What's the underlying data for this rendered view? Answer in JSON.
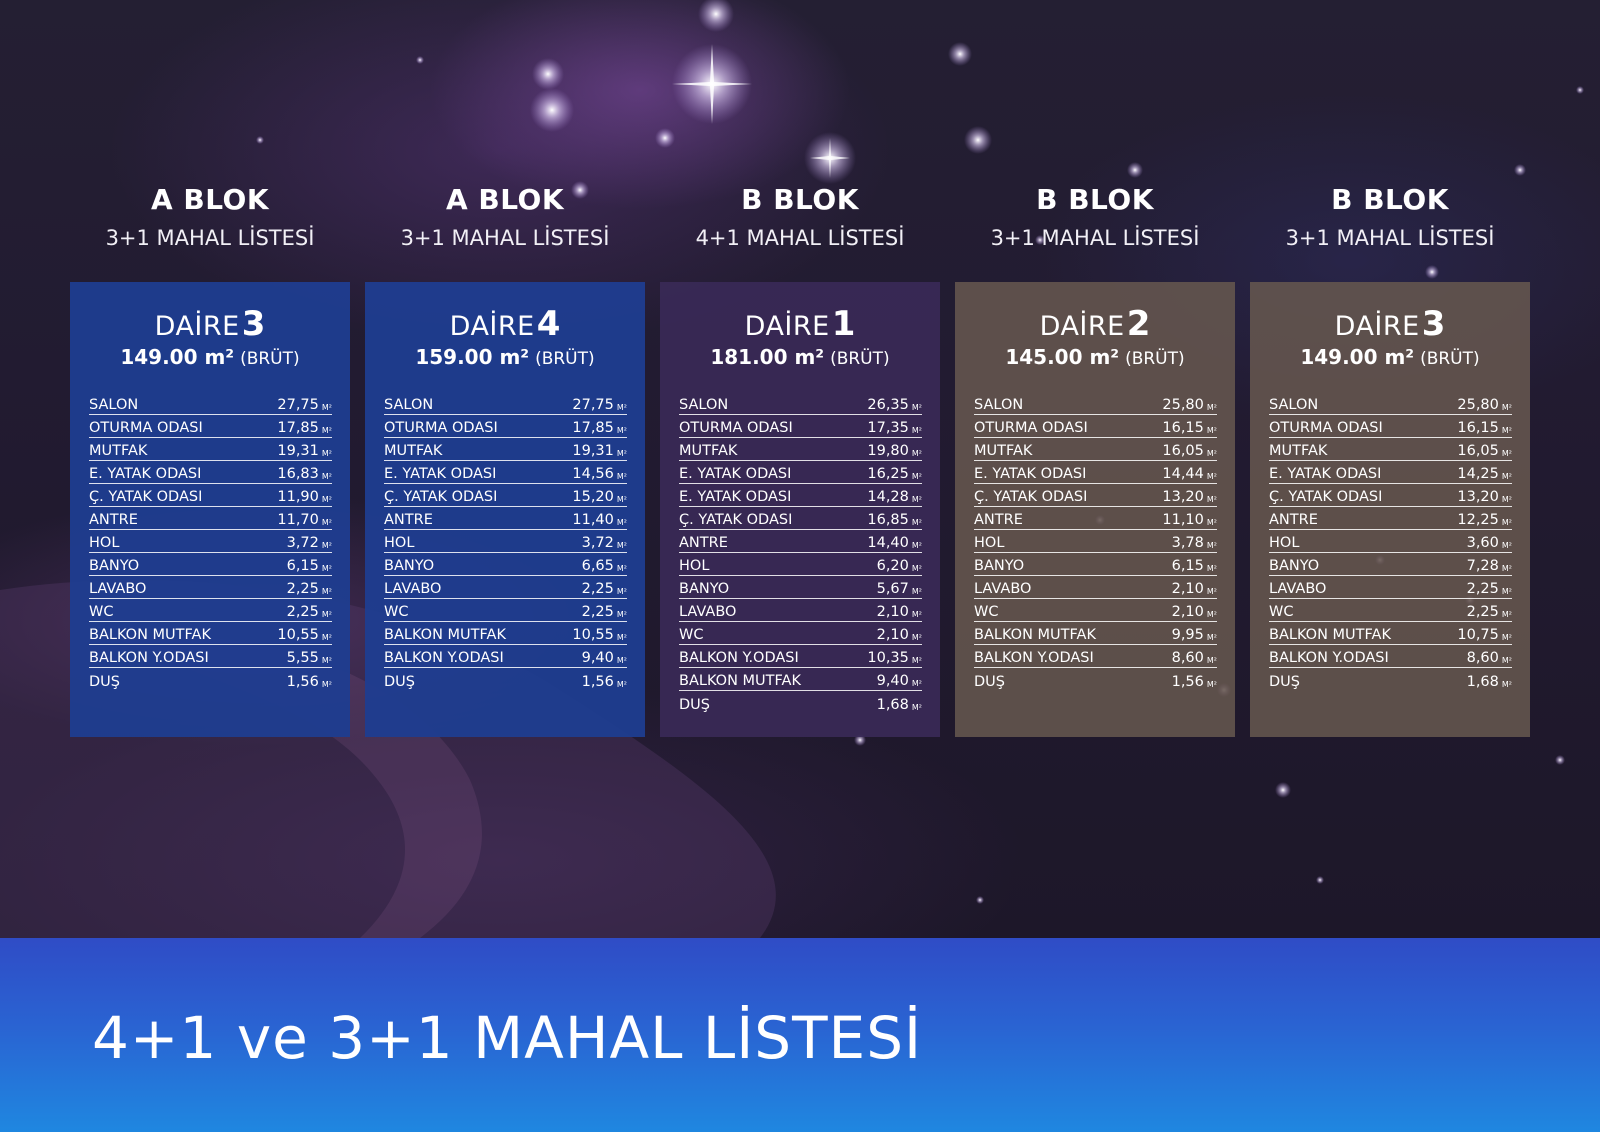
{
  "title": "4+1 ve 3+1 MAHAL LİSTESİ",
  "colors": {
    "blue_card": "#1f3d90",
    "purple_card": "#3a2a58",
    "taupe_card": "#65574e",
    "band_top": "#2f4cc6",
    "band_bottom": "#1f87e0"
  },
  "unit_label": "M²",
  "columns": [
    {
      "blok": "A BLOK",
      "subtitle": "3+1 MAHAL LİSTESİ",
      "daire_word": "DAİRE",
      "daire_no": "3",
      "area": "149.00 m²",
      "brut": "(BRÜT)",
      "rows": [
        {
          "label": "SALON",
          "value": "27,75"
        },
        {
          "label": "OTURMA ODASI",
          "value": "17,85"
        },
        {
          "label": "MUTFAK",
          "value": "19,31"
        },
        {
          "label": "E. YATAK ODASI",
          "value": "16,83"
        },
        {
          "label": "Ç. YATAK ODASI",
          "value": "11,90"
        },
        {
          "label": "ANTRE",
          "value": "11,70"
        },
        {
          "label": "HOL",
          "value": "3,72"
        },
        {
          "label": "BANYO",
          "value": "6,15"
        },
        {
          "label": "LAVABO",
          "value": "2,25"
        },
        {
          "label": "WC",
          "value": "2,25"
        },
        {
          "label": "BALKON MUTFAK",
          "value": "10,55"
        },
        {
          "label": "BALKON Y.ODASI",
          "value": "5,55"
        },
        {
          "label": "DUŞ",
          "value": "1,56"
        }
      ]
    },
    {
      "blok": "A BLOK",
      "subtitle": "3+1 MAHAL LİSTESİ",
      "daire_word": "DAİRE",
      "daire_no": "4",
      "area": "159.00 m²",
      "brut": "(BRÜT)",
      "rows": [
        {
          "label": "SALON",
          "value": "27,75"
        },
        {
          "label": "OTURMA ODASI",
          "value": "17,85"
        },
        {
          "label": "MUTFAK",
          "value": "19,31"
        },
        {
          "label": "E. YATAK ODASI",
          "value": "14,56"
        },
        {
          "label": "Ç. YATAK ODASI",
          "value": "15,20"
        },
        {
          "label": "ANTRE",
          "value": "11,40"
        },
        {
          "label": "HOL",
          "value": "3,72"
        },
        {
          "label": "BANYO",
          "value": "6,65"
        },
        {
          "label": "LAVABO",
          "value": "2,25"
        },
        {
          "label": "WC",
          "value": "2,25"
        },
        {
          "label": "BALKON MUTFAK",
          "value": "10,55"
        },
        {
          "label": "BALKON Y.ODASI",
          "value": "9,40"
        },
        {
          "label": "DUŞ",
          "value": "1,56"
        }
      ]
    },
    {
      "blok": "B BLOK",
      "subtitle": "4+1 MAHAL LİSTESİ",
      "daire_word": "DAİRE",
      "daire_no": "1",
      "area": "181.00 m²",
      "brut": "(BRÜT)",
      "rows": [
        {
          "label": "SALON",
          "value": "26,35"
        },
        {
          "label": "OTURMA ODASI",
          "value": "17,35"
        },
        {
          "label": "MUTFAK",
          "value": "19,80"
        },
        {
          "label": "E. YATAK ODASI",
          "value": "16,25"
        },
        {
          "label": "E. YATAK ODASI",
          "value": "14,28"
        },
        {
          "label": "Ç. YATAK ODASI",
          "value": "16,85"
        },
        {
          "label": "ANTRE",
          "value": "14,40"
        },
        {
          "label": "HOL",
          "value": "6,20"
        },
        {
          "label": "BANYO",
          "value": "5,67"
        },
        {
          "label": "LAVABO",
          "value": "2,10"
        },
        {
          "label": "WC",
          "value": "2,10"
        },
        {
          "label": "BALKON Y.ODASI",
          "value": "10,35"
        },
        {
          "label": "BALKON MUTFAK",
          "value": "9,40"
        },
        {
          "label": "DUŞ",
          "value": "1,68"
        }
      ]
    },
    {
      "blok": "B BLOK",
      "subtitle": "3+1 MAHAL LİSTESİ",
      "daire_word": "DAİRE",
      "daire_no": "2",
      "area": "145.00 m²",
      "brut": "(BRÜT)",
      "rows": [
        {
          "label": "SALON",
          "value": "25,80"
        },
        {
          "label": "OTURMA ODASI",
          "value": "16,15"
        },
        {
          "label": "MUTFAK",
          "value": "16,05"
        },
        {
          "label": "E. YATAK ODASI",
          "value": "14,44"
        },
        {
          "label": "Ç. YATAK ODASI",
          "value": "13,20"
        },
        {
          "label": "ANTRE",
          "value": "11,10"
        },
        {
          "label": "HOL",
          "value": "3,78"
        },
        {
          "label": "BANYO",
          "value": "6,15"
        },
        {
          "label": "LAVABO",
          "value": "2,10"
        },
        {
          "label": "WC",
          "value": "2,10"
        },
        {
          "label": "BALKON MUTFAK",
          "value": "9,95"
        },
        {
          "label": "BALKON Y.ODASI",
          "value": "8,60"
        },
        {
          "label": "DUŞ",
          "value": "1,56"
        }
      ]
    },
    {
      "blok": "B BLOK",
      "subtitle": "3+1 MAHAL LİSTESİ",
      "daire_word": "DAİRE",
      "daire_no": "3",
      "area": "149.00 m²",
      "brut": "(BRÜT)",
      "rows": [
        {
          "label": "SALON",
          "value": "25,80"
        },
        {
          "label": "OTURMA ODASI",
          "value": "16,15"
        },
        {
          "label": "MUTFAK",
          "value": "16,05"
        },
        {
          "label": "E. YATAK ODASI",
          "value": "14,25"
        },
        {
          "label": "Ç. YATAK ODASI",
          "value": "13,20"
        },
        {
          "label": "ANTRE",
          "value": "12,25"
        },
        {
          "label": "HOL",
          "value": "3,60"
        },
        {
          "label": "BANYO",
          "value": "7,28"
        },
        {
          "label": "LAVABO",
          "value": "2,25"
        },
        {
          "label": "WC",
          "value": "2,25"
        },
        {
          "label": "BALKON MUTFAK",
          "value": "10,75"
        },
        {
          "label": "BALKON Y.ODASI",
          "value": "8,60"
        },
        {
          "label": "DUŞ",
          "value": "1,68"
        }
      ]
    }
  ]
}
